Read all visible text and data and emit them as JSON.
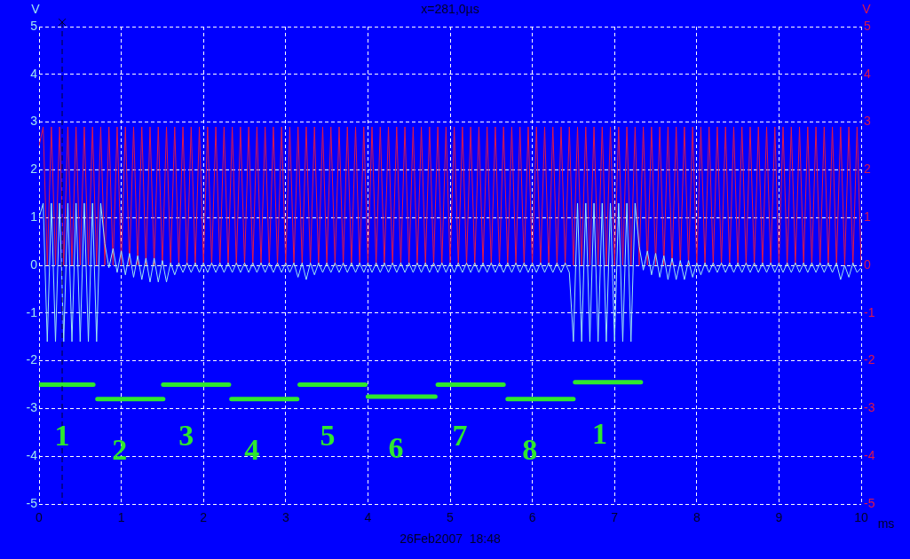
{
  "chart_data": {
    "type": "line",
    "title": "x=281,0µs",
    "xlabel": "ms",
    "ylabel": "V",
    "y2label": "V",
    "xlim": [
      0,
      10
    ],
    "xticks": [
      0,
      1,
      2,
      3,
      4,
      5,
      6,
      7,
      8,
      9,
      10
    ],
    "ylim": [
      -5,
      5
    ],
    "yticks": [
      -5,
      -4,
      -3,
      -2,
      -1,
      0,
      1,
      2,
      3,
      4,
      5
    ],
    "y2lim": [
      -5,
      5
    ],
    "y2ticks": [
      -5,
      -4,
      -3,
      -2,
      -1,
      0,
      1,
      2,
      3,
      4,
      5
    ],
    "grid": true,
    "x": [
      0,
      0.05,
      0.1,
      0.15,
      0.2,
      0.25,
      0.3,
      0.35,
      0.4,
      0.45,
      0.5,
      0.55,
      0.6,
      0.65,
      0.7,
      0.75,
      0.8,
      0.85,
      0.9,
      0.95,
      1,
      1.05,
      1.1,
      1.15,
      1.2,
      1.25,
      1.3,
      1.35,
      1.4,
      1.45,
      1.5,
      1.55,
      1.6,
      1.65,
      1.7,
      1.75,
      1.8,
      1.85,
      1.9,
      1.95,
      2,
      2.05,
      2.1,
      2.15,
      2.2,
      2.25,
      2.3,
      2.35,
      2.4,
      2.45,
      2.5,
      2.55,
      2.6,
      2.65,
      2.7,
      2.75,
      2.8,
      2.85,
      2.9,
      2.95,
      3,
      3.05,
      3.1,
      3.15,
      3.2,
      3.25,
      3.3,
      3.35,
      3.4,
      3.45,
      3.5,
      3.55,
      3.6,
      3.65,
      3.7,
      3.75,
      3.8,
      3.85,
      3.9,
      3.95,
      4,
      4.05,
      4.1,
      4.15,
      4.2,
      4.25,
      4.3,
      4.35,
      4.4,
      4.45,
      4.5,
      4.55,
      4.6,
      4.65,
      4.7,
      4.75,
      4.8,
      4.85,
      4.9,
      4.95,
      5,
      5.05,
      5.1,
      5.15,
      5.2,
      5.25,
      5.3,
      5.35,
      5.4,
      5.45,
      5.5,
      5.55,
      5.6,
      5.65,
      5.7,
      5.75,
      5.8,
      5.85,
      5.9,
      5.95,
      6,
      6.05,
      6.1,
      6.15,
      6.2,
      6.25,
      6.3,
      6.35,
      6.4,
      6.45,
      6.5,
      6.55,
      6.6,
      6.65,
      6.7,
      6.75,
      6.8,
      6.85,
      6.9,
      6.95,
      7,
      7.05,
      7.1,
      7.15,
      7.2,
      7.25,
      7.3,
      7.35,
      7.4,
      7.45,
      7.5,
      7.55,
      7.6,
      7.65,
      7.7,
      7.75,
      7.8,
      7.85,
      7.9,
      7.95,
      8,
      8.05,
      8.1,
      8.15,
      8.2,
      8.25,
      8.3,
      8.35,
      8.4,
      8.45,
      8.5,
      8.55,
      8.6,
      8.65,
      8.7,
      8.75,
      8.8,
      8.85,
      8.9,
      8.95,
      9,
      9.05,
      9.1,
      9.15,
      9.2,
      9.25,
      9.3,
      9.35,
      9.4,
      9.45,
      9.5,
      9.55,
      9.6,
      9.65,
      9.7,
      9.75,
      9.8,
      9.85,
      9.9,
      9.95,
      10
    ],
    "series": [
      {
        "color": "#e01848",
        "axis": "y2",
        "values": [
          2.5,
          2.9,
          0,
          2.9,
          0,
          2.9,
          0,
          2.9,
          0,
          2.9,
          0,
          2.9,
          0,
          2.9,
          0,
          2.9,
          0,
          2.9,
          0,
          2.9,
          0,
          2.9,
          0,
          2.9,
          0,
          2.9,
          0,
          2.9,
          0,
          2.9,
          0,
          2.9,
          0,
          2.9,
          0,
          2.9,
          0,
          2.9,
          0,
          2.9,
          0,
          2.9,
          0,
          2.9,
          0,
          2.9,
          0,
          2.9,
          0,
          2.9,
          0,
          2.9,
          0,
          2.9,
          0,
          2.9,
          0,
          2.9,
          0,
          2.9,
          0,
          2.9,
          0,
          2.9,
          0,
          2.9,
          0,
          2.9,
          0,
          2.9,
          0,
          2.9,
          0,
          2.9,
          0,
          2.9,
          0,
          2.9,
          0,
          2.9,
          0,
          2.9,
          0,
          2.9,
          0,
          2.9,
          0,
          2.9,
          0,
          2.9,
          0,
          2.9,
          0,
          2.9,
          0,
          2.9,
          0,
          2.9,
          0,
          2.9,
          0,
          2.9,
          0,
          2.9,
          0,
          2.9,
          0,
          2.9,
          0,
          2.9,
          0,
          2.9,
          0,
          2.9,
          0,
          2.9,
          0,
          2.9,
          0,
          2.9,
          0,
          2.9,
          0,
          2.9,
          0,
          2.9,
          0,
          2.9,
          0,
          2.9,
          0,
          2.9,
          0,
          2.9,
          0,
          2.9,
          0,
          2.9,
          0,
          2.9,
          0,
          2.9,
          0,
          2.9,
          0,
          2.9,
          0,
          2.9,
          0,
          2.9,
          0,
          2.9,
          0,
          2.9,
          0,
          2.9,
          0,
          2.9,
          0,
          2.9,
          0,
          2.9,
          0,
          2.9,
          0,
          2.9,
          0,
          2.9,
          0,
          2.9,
          0,
          2.9,
          0,
          2.9,
          0,
          2.9,
          0,
          2.9,
          0,
          2.9,
          0,
          2.9,
          0,
          2.9,
          0,
          2.9,
          0,
          2.9,
          0,
          2.9,
          0,
          2.9,
          0,
          2.9,
          0,
          2.9,
          0,
          2.9,
          0,
          2.9,
          0
        ]
      },
      {
        "color": "#a0e8f0",
        "axis": "y",
        "values": [
          1,
          1.3,
          -1.6,
          1.3,
          -1.6,
          1.3,
          -1.6,
          1.3,
          -1.6,
          1.3,
          -1.6,
          1.3,
          -1.6,
          1.3,
          -1.6,
          1.3,
          0.45,
          -0.05,
          0.35,
          -0.15,
          0.3,
          -0.2,
          0.25,
          -0.25,
          0.2,
          -0.3,
          0.15,
          -0.35,
          0.15,
          -0.35,
          0.1,
          -0.35,
          0.05,
          -0.2,
          0.05,
          -0.15,
          0.05,
          -0.15,
          0.05,
          -0.15,
          0.05,
          -0.15,
          0.05,
          -0.15,
          0.05,
          -0.15,
          0.05,
          -0.15,
          0.05,
          -0.15,
          0.05,
          -0.15,
          0.05,
          -0.15,
          0.05,
          -0.15,
          0.05,
          -0.15,
          0.05,
          -0.15,
          0.05,
          -0.15,
          0.05,
          -0.25,
          0.05,
          -0.3,
          0.05,
          -0.2,
          0.05,
          -0.15,
          0.05,
          -0.15,
          0.05,
          -0.15,
          0.05,
          -0.15,
          0.05,
          -0.15,
          0.05,
          -0.15,
          0.05,
          -0.15,
          0.05,
          -0.15,
          0.05,
          -0.15,
          0.05,
          -0.15,
          0.05,
          -0.15,
          0.05,
          -0.15,
          0.05,
          -0.15,
          0.05,
          -0.15,
          0.05,
          -0.15,
          0.05,
          -0.15,
          0.05,
          -0.15,
          0.05,
          -0.15,
          0.05,
          -0.15,
          0.05,
          -0.15,
          0.05,
          -0.15,
          0.05,
          -0.15,
          0.05,
          -0.15,
          0.05,
          -0.15,
          0.05,
          -0.15,
          0.05,
          -0.15,
          0.05,
          -0.15,
          0.05,
          -0.15,
          0.05,
          -0.15,
          0.05,
          -0.15,
          0.05,
          -0.15,
          -1.6,
          1.3,
          -1.6,
          1.3,
          -1.6,
          1.3,
          -1.6,
          1.3,
          -1.6,
          1.3,
          -1.6,
          1.3,
          -1.6,
          1.3,
          -1.6,
          1.3,
          0.4,
          -0.1,
          0.3,
          -0.2,
          0.25,
          -0.25,
          0.2,
          -0.3,
          0.15,
          -0.3,
          0.1,
          -0.3,
          0.1,
          -0.25,
          0.05,
          -0.2,
          0.05,
          -0.15,
          0.05,
          -0.15,
          0.05,
          -0.15,
          0.05,
          -0.15,
          0.05,
          -0.15,
          0.05,
          -0.15,
          0.05,
          -0.15,
          0.05,
          -0.15,
          0.05,
          -0.15,
          0.05,
          -0.15,
          0.05,
          -0.15,
          0.05,
          -0.15,
          0.05,
          -0.15,
          0.05,
          -0.15,
          0.05,
          -0.15,
          0.05,
          -0.15,
          0.05,
          -0.3,
          0,
          -0.25,
          0.05,
          -0.15,
          -0.05
        ]
      },
      {
        "color": "#2ee82e",
        "axis": "y",
        "x": [
          0,
          0.66
        ],
        "values": [
          -2.5,
          -2.5
        ]
      },
      {
        "color": "#2ee82e",
        "axis": "y",
        "x": [
          0.71,
          1.51
        ],
        "values": [
          -2.8,
          -2.8
        ]
      },
      {
        "color": "#2ee82e",
        "axis": "y",
        "x": [
          1.51,
          2.31
        ],
        "values": [
          -2.5,
          -2.5
        ]
      },
      {
        "color": "#2ee82e",
        "axis": "y",
        "x": [
          2.34,
          3.14
        ],
        "values": [
          -2.8,
          -2.8
        ]
      },
      {
        "color": "#2ee82e",
        "axis": "y",
        "x": [
          3.17,
          3.97
        ],
        "values": [
          -2.5,
          -2.5
        ]
      },
      {
        "color": "#2ee82e",
        "axis": "y",
        "x": [
          4,
          4.82
        ],
        "values": [
          -2.75,
          -2.75
        ]
      },
      {
        "color": "#2ee82e",
        "axis": "y",
        "x": [
          4.85,
          5.65
        ],
        "values": [
          -2.5,
          -2.5
        ]
      },
      {
        "color": "#2ee82e",
        "axis": "y",
        "x": [
          5.7,
          6.5
        ],
        "values": [
          -2.8,
          -2.8
        ]
      },
      {
        "color": "#2ee82e",
        "axis": "y",
        "x": [
          6.52,
          7.32
        ],
        "values": [
          -2.45,
          -2.45
        ]
      }
    ],
    "ref_lines": [
      {
        "axis": "x",
        "value": 0.281,
        "color": "#000030",
        "line_style": "dashed"
      }
    ],
    "annotations": [
      {
        "text": "1",
        "x": 0.28,
        "y": -2.5
      },
      {
        "text": "2",
        "x": 0.98,
        "y": -2.8
      },
      {
        "text": "3",
        "x": 1.79,
        "y": -2.5
      },
      {
        "text": "4",
        "x": 2.59,
        "y": -2.8
      },
      {
        "text": "5",
        "x": 3.51,
        "y": -2.5
      },
      {
        "text": "6",
        "x": 4.34,
        "y": -2.75
      },
      {
        "text": "7",
        "x": 5.12,
        "y": -2.5
      },
      {
        "text": "8",
        "x": 5.97,
        "y": -2.8
      },
      {
        "text": "1",
        "x": 6.82,
        "y": -2.45
      },
      "26Feb2007  18:48"
    ]
  }
}
